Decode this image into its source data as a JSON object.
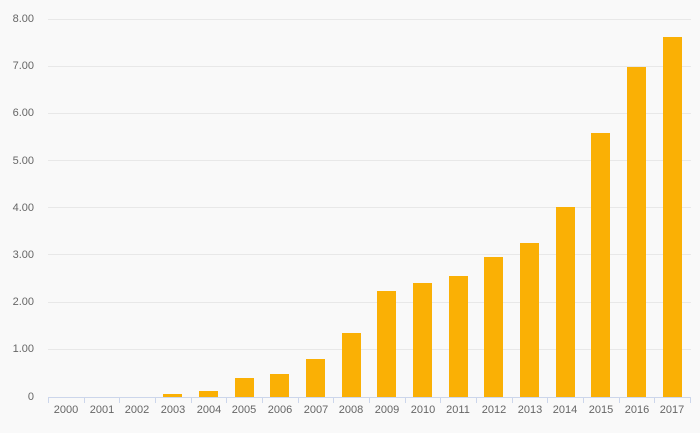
{
  "chart_data": {
    "type": "bar",
    "title": "",
    "xlabel": "",
    "ylabel": "",
    "categories": [
      "2000",
      "2001",
      "2002",
      "2003",
      "2004",
      "2005",
      "2006",
      "2007",
      "2008",
      "2009",
      "2010",
      "2011",
      "2012",
      "2013",
      "2014",
      "2015",
      "2016",
      "2017"
    ],
    "values": [
      0.0,
      0.0,
      0.01,
      0.06,
      0.12,
      0.4,
      0.49,
      0.8,
      1.36,
      2.25,
      2.41,
      2.57,
      2.97,
      3.26,
      4.02,
      5.6,
      7.0,
      7.63
    ],
    "ylim": [
      0,
      8
    ],
    "yticks": [
      {
        "value": 0,
        "label": "0"
      },
      {
        "value": 1,
        "label": "1.00"
      },
      {
        "value": 2,
        "label": "2.00"
      },
      {
        "value": 3,
        "label": "3.00"
      },
      {
        "value": 4,
        "label": "4.00"
      },
      {
        "value": 5,
        "label": "5.00"
      },
      {
        "value": 6,
        "label": "6.00"
      },
      {
        "value": 7,
        "label": "7.00"
      },
      {
        "value": 8,
        "label": "8.00"
      }
    ],
    "grid": true,
    "legend": false,
    "colors": {
      "bar": "#FAB005",
      "background": "#f9f9f9",
      "gridline": "#e8e8e8",
      "axis_line": "#ccd6eb",
      "tick": "#ccd6eb",
      "label": "#666666"
    }
  }
}
